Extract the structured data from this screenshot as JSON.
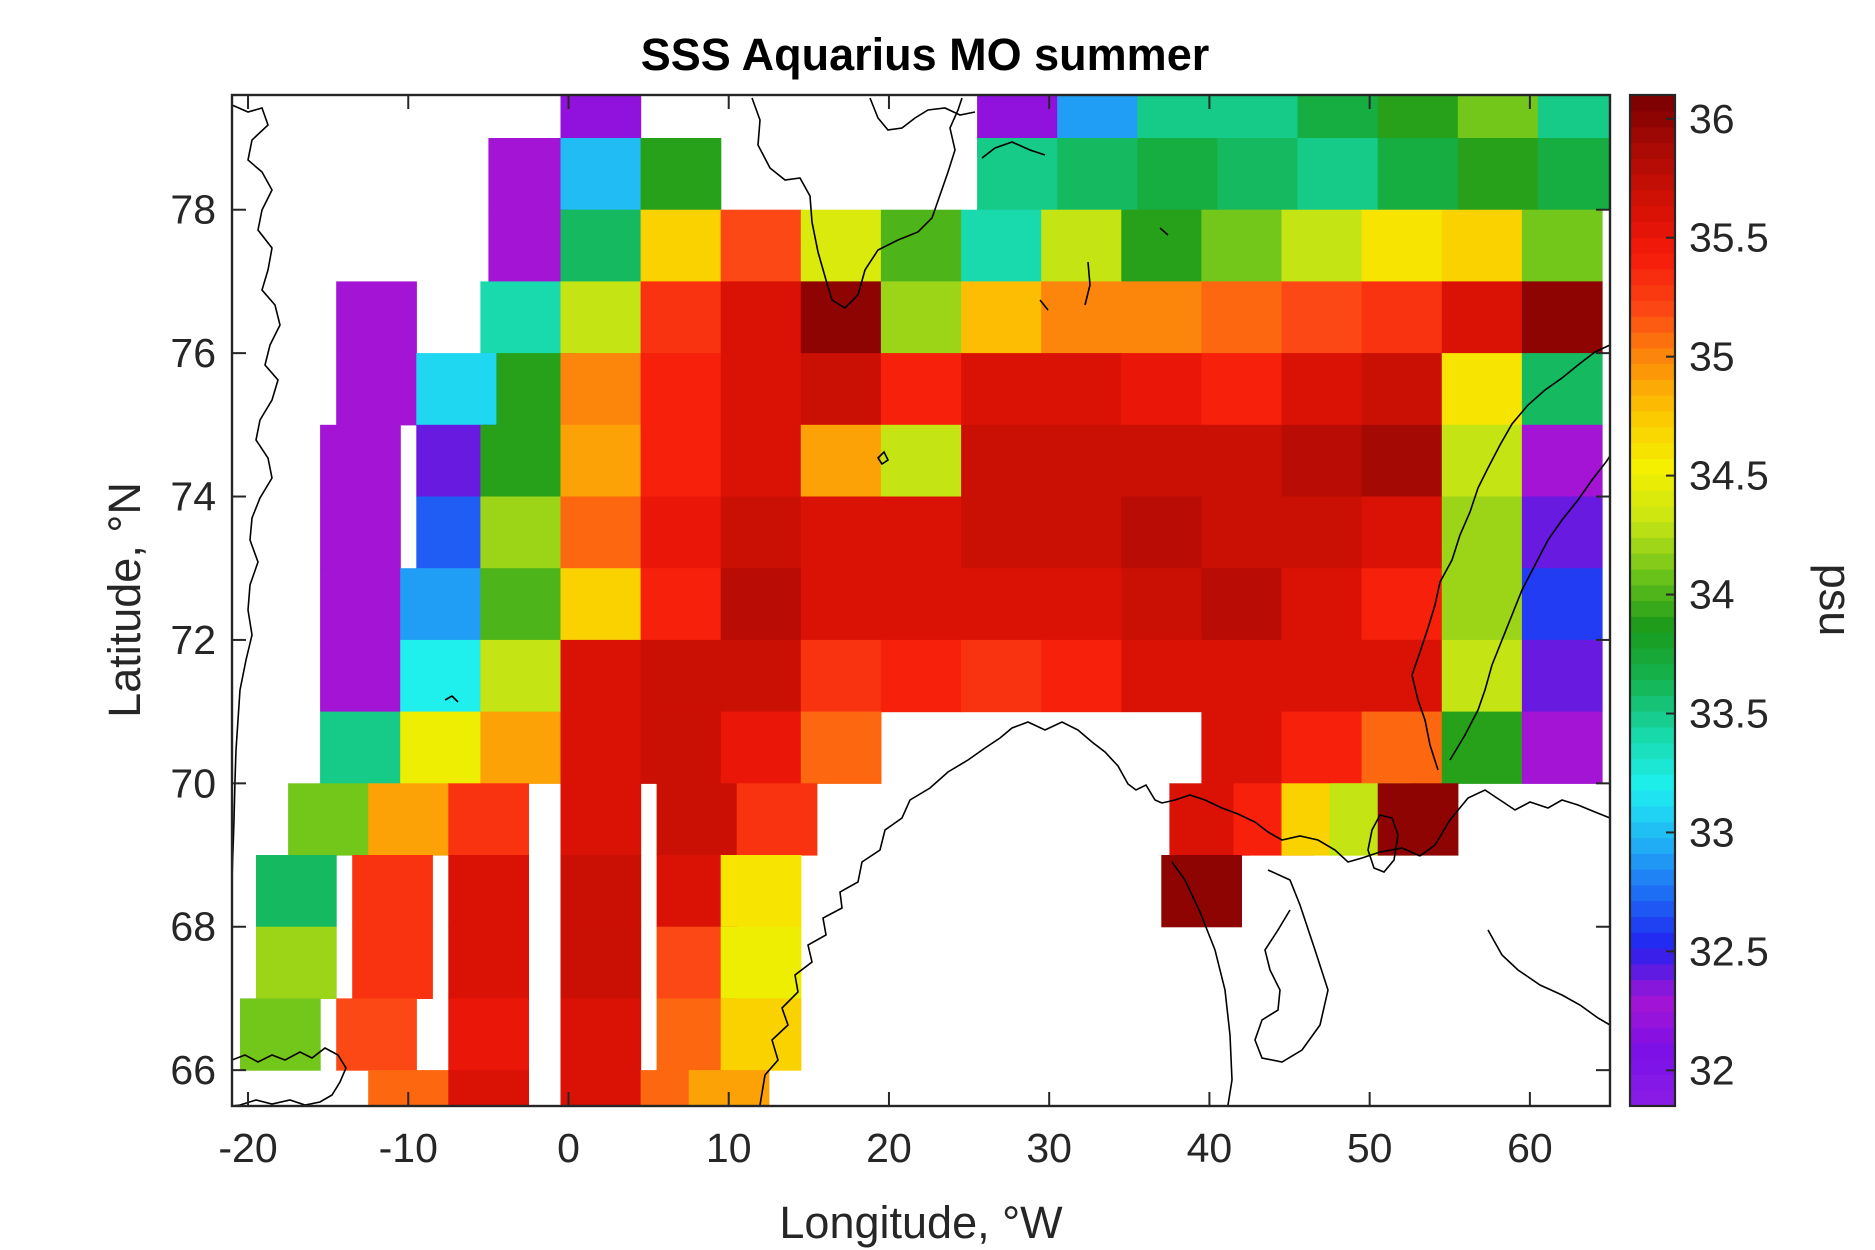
{
  "chart_data": {
    "type": "heatmap",
    "title": "SSS Aquarius MO summer",
    "xlabel": "Longitude, °W",
    "ylabel": "Latitude, °N",
    "colorbar_label": "psu",
    "xlim": [
      -21,
      65
    ],
    "ylim": [
      65.5,
      79.6
    ],
    "x_ticks": [
      "-20",
      "-10",
      "0",
      "10",
      "20",
      "30",
      "40",
      "50",
      "60"
    ],
    "x_tick_values": [
      -20,
      -10,
      0,
      10,
      20,
      30,
      40,
      50,
      60
    ],
    "y_ticks": [
      "66",
      "68",
      "70",
      "72",
      "74",
      "76",
      "78"
    ],
    "y_tick_values": [
      66,
      68,
      70,
      72,
      74,
      76,
      78
    ],
    "colorbar_ticks": [
      "32",
      "32.5",
      "33",
      "33.5",
      "34",
      "34.5",
      "35",
      "35.5",
      "36"
    ],
    "colorbar_tick_values": [
      32,
      32.5,
      33,
      33.5,
      34,
      34.5,
      35,
      35.5,
      36
    ],
    "clim": [
      31.85,
      36.1
    ],
    "grid": false,
    "colormap_colors": [
      "#8a1ee6",
      "#7a10e8",
      "#a514d4",
      "#2222f0",
      "#1e6cf5",
      "#21b4f5",
      "#1ff0f0",
      "#18d8a8",
      "#14b450",
      "#1a9a1a",
      "#6ec41a",
      "#c8e614",
      "#f5f000",
      "#fcc800",
      "#fc8c0a",
      "#fc4614",
      "#f51a0a",
      "#d21005",
      "#aa0a05",
      "#780000"
    ],
    "cells": [
      {
        "lon": 2,
        "lat": 79.25,
        "sss": 32.2
      },
      {
        "lon": 28,
        "lat": 79.25,
        "sss": 32.2
      },
      {
        "lon": 33,
        "lat": 79.25,
        "sss": 32.9
      },
      {
        "lon": 38,
        "lat": 79.25,
        "sss": 33.5
      },
      {
        "lon": 43,
        "lat": 79.25,
        "sss": 33.5
      },
      {
        "lon": 48,
        "lat": 79.25,
        "sss": 33.7
      },
      {
        "lon": 53,
        "lat": 79.25,
        "sss": 33.9
      },
      {
        "lon": 58,
        "lat": 79.25,
        "sss": 34.1
      },
      {
        "lon": 63,
        "lat": 79.25,
        "sss": 33.5
      },
      {
        "lon": -2.5,
        "lat": 78.5,
        "sss": 32.3
      },
      {
        "lon": 2,
        "lat": 78.5,
        "sss": 33.0
      },
      {
        "lon": 7,
        "lat": 78.5,
        "sss": 33.9
      },
      {
        "lon": 28,
        "lat": 78.5,
        "sss": 33.5
      },
      {
        "lon": 33,
        "lat": 78.5,
        "sss": 33.6
      },
      {
        "lon": 38,
        "lat": 78.5,
        "sss": 33.7
      },
      {
        "lon": 43,
        "lat": 78.5,
        "sss": 33.6
      },
      {
        "lon": 48,
        "lat": 78.5,
        "sss": 33.5
      },
      {
        "lon": 53,
        "lat": 78.5,
        "sss": 33.7
      },
      {
        "lon": 58,
        "lat": 78.5,
        "sss": 33.9
      },
      {
        "lon": 63,
        "lat": 78.5,
        "sss": 33.7
      },
      {
        "lon": -2.5,
        "lat": 77.5,
        "sss": 32.3
      },
      {
        "lon": 2,
        "lat": 77.5,
        "sss": 33.6
      },
      {
        "lon": 7,
        "lat": 77.5,
        "sss": 34.7
      },
      {
        "lon": 12,
        "lat": 77.5,
        "sss": 35.2
      },
      {
        "lon": 17,
        "lat": 77.5,
        "sss": 34.4
      },
      {
        "lon": 22,
        "lat": 77.5,
        "sss": 34.0
      },
      {
        "lon": 27,
        "lat": 77.5,
        "sss": 33.4
      },
      {
        "lon": 32,
        "lat": 77.5,
        "sss": 34.3
      },
      {
        "lon": 37,
        "lat": 77.5,
        "sss": 33.9
      },
      {
        "lon": 42,
        "lat": 77.5,
        "sss": 34.1
      },
      {
        "lon": 47,
        "lat": 77.5,
        "sss": 34.3
      },
      {
        "lon": 52,
        "lat": 77.5,
        "sss": 34.6
      },
      {
        "lon": 57,
        "lat": 77.5,
        "sss": 34.7
      },
      {
        "lon": 62,
        "lat": 77.5,
        "sss": 34.1
      },
      {
        "lon": -12,
        "lat": 76.5,
        "sss": 32.3
      },
      {
        "lon": -3,
        "lat": 76.5,
        "sss": 33.4
      },
      {
        "lon": 2,
        "lat": 76.5,
        "sss": 34.3
      },
      {
        "lon": 7,
        "lat": 76.5,
        "sss": 35.3
      },
      {
        "lon": 12,
        "lat": 76.5,
        "sss": 35.6
      },
      {
        "lon": 17,
        "lat": 76.5,
        "sss": 36.0
      },
      {
        "lon": 22,
        "lat": 76.5,
        "sss": 34.2
      },
      {
        "lon": 27,
        "lat": 76.5,
        "sss": 34.8
      },
      {
        "lon": 32,
        "lat": 76.5,
        "sss": 35.0
      },
      {
        "lon": 37,
        "lat": 76.5,
        "sss": 35.0
      },
      {
        "lon": 42,
        "lat": 76.5,
        "sss": 35.1
      },
      {
        "lon": 47,
        "lat": 76.5,
        "sss": 35.2
      },
      {
        "lon": 52,
        "lat": 76.5,
        "sss": 35.3
      },
      {
        "lon": 57,
        "lat": 76.5,
        "sss": 35.6
      },
      {
        "lon": 62,
        "lat": 76.5,
        "sss": 36.0
      },
      {
        "lon": -12,
        "lat": 75.5,
        "sss": 32.3
      },
      {
        "lon": -7,
        "lat": 75.5,
        "sss": 33.1
      },
      {
        "lon": -2,
        "lat": 75.5,
        "sss": 33.9
      },
      {
        "lon": 2,
        "lat": 75.5,
        "sss": 35.0
      },
      {
        "lon": 7,
        "lat": 75.5,
        "sss": 35.4
      },
      {
        "lon": 12,
        "lat": 75.5,
        "sss": 35.6
      },
      {
        "lon": 17,
        "lat": 75.5,
        "sss": 35.7
      },
      {
        "lon": 22,
        "lat": 75.5,
        "sss": 35.4
      },
      {
        "lon": 27,
        "lat": 75.5,
        "sss": 35.6
      },
      {
        "lon": 32,
        "lat": 75.5,
        "sss": 35.6
      },
      {
        "lon": 37,
        "lat": 75.5,
        "sss": 35.5
      },
      {
        "lon": 42,
        "lat": 75.5,
        "sss": 35.4
      },
      {
        "lon": 47,
        "lat": 75.5,
        "sss": 35.6
      },
      {
        "lon": 52,
        "lat": 75.5,
        "sss": 35.7
      },
      {
        "lon": 57,
        "lat": 75.5,
        "sss": 34.6
      },
      {
        "lon": 62,
        "lat": 75.5,
        "sss": 33.6
      },
      {
        "lon": -13,
        "lat": 74.5,
        "sss": 32.3
      },
      {
        "lon": -7,
        "lat": 74.5,
        "sss": 32.4
      },
      {
        "lon": -3,
        "lat": 74.5,
        "sss": 33.9
      },
      {
        "lon": 2,
        "lat": 74.5,
        "sss": 34.9
      },
      {
        "lon": 7,
        "lat": 74.5,
        "sss": 35.4
      },
      {
        "lon": 12,
        "lat": 74.5,
        "sss": 35.6
      },
      {
        "lon": 17,
        "lat": 74.5,
        "sss": 34.9
      },
      {
        "lon": 22,
        "lat": 74.5,
        "sss": 34.3
      },
      {
        "lon": 27,
        "lat": 74.5,
        "sss": 35.7
      },
      {
        "lon": 32,
        "lat": 74.5,
        "sss": 35.7
      },
      {
        "lon": 37,
        "lat": 74.5,
        "sss": 35.7
      },
      {
        "lon": 42,
        "lat": 74.5,
        "sss": 35.7
      },
      {
        "lon": 47,
        "lat": 74.5,
        "sss": 35.8
      },
      {
        "lon": 52,
        "lat": 74.5,
        "sss": 35.9
      },
      {
        "lon": 57,
        "lat": 74.5,
        "sss": 34.3
      },
      {
        "lon": 62,
        "lat": 74.5,
        "sss": 32.3
      },
      {
        "lon": -13,
        "lat": 73.5,
        "sss": 32.3
      },
      {
        "lon": -7,
        "lat": 73.5,
        "sss": 32.7
      },
      {
        "lon": -3,
        "lat": 73.5,
        "sss": 34.2
      },
      {
        "lon": 2,
        "lat": 73.5,
        "sss": 35.1
      },
      {
        "lon": 7,
        "lat": 73.5,
        "sss": 35.5
      },
      {
        "lon": 12,
        "lat": 73.5,
        "sss": 35.7
      },
      {
        "lon": 17,
        "lat": 73.5,
        "sss": 35.6
      },
      {
        "lon": 22,
        "lat": 73.5,
        "sss": 35.6
      },
      {
        "lon": 27,
        "lat": 73.5,
        "sss": 35.7
      },
      {
        "lon": 32,
        "lat": 73.5,
        "sss": 35.7
      },
      {
        "lon": 37,
        "lat": 73.5,
        "sss": 35.8
      },
      {
        "lon": 42,
        "lat": 73.5,
        "sss": 35.7
      },
      {
        "lon": 47,
        "lat": 73.5,
        "sss": 35.7
      },
      {
        "lon": 52,
        "lat": 73.5,
        "sss": 35.6
      },
      {
        "lon": 57,
        "lat": 73.5,
        "sss": 34.2
      },
      {
        "lon": 62,
        "lat": 73.5,
        "sss": 32.4
      },
      {
        "lon": -13,
        "lat": 72.5,
        "sss": 32.3
      },
      {
        "lon": -8,
        "lat": 72.5,
        "sss": 32.9
      },
      {
        "lon": -3,
        "lat": 72.5,
        "sss": 34.0
      },
      {
        "lon": 2,
        "lat": 72.5,
        "sss": 34.7
      },
      {
        "lon": 7,
        "lat": 72.5,
        "sss": 35.4
      },
      {
        "lon": 12,
        "lat": 72.5,
        "sss": 35.8
      },
      {
        "lon": 17,
        "lat": 72.5,
        "sss": 35.6
      },
      {
        "lon": 22,
        "lat": 72.5,
        "sss": 35.6
      },
      {
        "lon": 27,
        "lat": 72.5,
        "sss": 35.6
      },
      {
        "lon": 32,
        "lat": 72.5,
        "sss": 35.6
      },
      {
        "lon": 37,
        "lat": 72.5,
        "sss": 35.7
      },
      {
        "lon": 42,
        "lat": 72.5,
        "sss": 35.8
      },
      {
        "lon": 47,
        "lat": 72.5,
        "sss": 35.6
      },
      {
        "lon": 52,
        "lat": 72.5,
        "sss": 35.4
      },
      {
        "lon": 57,
        "lat": 72.5,
        "sss": 34.2
      },
      {
        "lon": 62,
        "lat": 72.5,
        "sss": 32.6
      },
      {
        "lon": -13,
        "lat": 71.5,
        "sss": 32.3
      },
      {
        "lon": -8,
        "lat": 71.5,
        "sss": 33.2
      },
      {
        "lon": -3,
        "lat": 71.5,
        "sss": 34.3
      },
      {
        "lon": 2,
        "lat": 71.5,
        "sss": 35.6
      },
      {
        "lon": 7,
        "lat": 71.5,
        "sss": 35.7
      },
      {
        "lon": 12,
        "lat": 71.5,
        "sss": 35.7
      },
      {
        "lon": 17,
        "lat": 71.5,
        "sss": 35.3
      },
      {
        "lon": 22,
        "lat": 71.5,
        "sss": 35.4
      },
      {
        "lon": 27,
        "lat": 71.5,
        "sss": 35.3
      },
      {
        "lon": 32,
        "lat": 71.5,
        "sss": 35.4
      },
      {
        "lon": 37,
        "lat": 71.5,
        "sss": 35.6
      },
      {
        "lon": 42,
        "lat": 71.5,
        "sss": 35.6
      },
      {
        "lon": 47,
        "lat": 71.5,
        "sss": 35.6
      },
      {
        "lon": 52,
        "lat": 71.5,
        "sss": 35.6
      },
      {
        "lon": 57,
        "lat": 71.5,
        "sss": 34.3
      },
      {
        "lon": 62,
        "lat": 71.5,
        "sss": 32.4
      },
      {
        "lon": -13,
        "lat": 70.5,
        "sss": 33.5
      },
      {
        "lon": -8,
        "lat": 70.5,
        "sss": 34.5
      },
      {
        "lon": -3,
        "lat": 70.5,
        "sss": 34.9
      },
      {
        "lon": 2,
        "lat": 70.5,
        "sss": 35.6
      },
      {
        "lon": 7,
        "lat": 70.5,
        "sss": 35.7
      },
      {
        "lon": 12,
        "lat": 70.5,
        "sss": 35.5
      },
      {
        "lon": 17,
        "lat": 70.5,
        "sss": 35.1
      },
      {
        "lon": 42,
        "lat": 70.5,
        "sss": 35.6
      },
      {
        "lon": 47,
        "lat": 70.5,
        "sss": 35.4
      },
      {
        "lon": 52,
        "lat": 70.5,
        "sss": 35.1
      },
      {
        "lon": 57,
        "lat": 70.5,
        "sss": 33.9
      },
      {
        "lon": 62,
        "lat": 70.5,
        "sss": 32.3
      },
      {
        "lon": -15,
        "lat": 69.5,
        "sss": 34.1
      },
      {
        "lon": -10,
        "lat": 69.5,
        "sss": 34.9
      },
      {
        "lon": -5,
        "lat": 69.5,
        "sss": 35.3
      },
      {
        "lon": 2,
        "lat": 69.5,
        "sss": 35.6
      },
      {
        "lon": 8,
        "lat": 69.5,
        "sss": 35.7
      },
      {
        "lon": 13,
        "lat": 69.5,
        "sss": 35.3
      },
      {
        "lon": 40,
        "lat": 69.5,
        "sss": 35.6
      },
      {
        "lon": 44,
        "lat": 69.5,
        "sss": 35.4
      },
      {
        "lon": 47,
        "lat": 69.5,
        "sss": 34.7
      },
      {
        "lon": 50,
        "lat": 69.5,
        "sss": 34.3
      },
      {
        "lon": 53,
        "lat": 69.5,
        "sss": 36.0
      },
      {
        "lon": -17,
        "lat": 68.5,
        "sss": 33.6
      },
      {
        "lon": -11,
        "lat": 68.5,
        "sss": 35.3
      },
      {
        "lon": -5,
        "lat": 68.5,
        "sss": 35.6
      },
      {
        "lon": 2,
        "lat": 68.5,
        "sss": 35.7
      },
      {
        "lon": 8,
        "lat": 68.5,
        "sss": 35.6
      },
      {
        "lon": 12,
        "lat": 68.5,
        "sss": 34.6
      },
      {
        "lon": 39.5,
        "lat": 68.5,
        "sss": 36.0
      },
      {
        "lon": -17,
        "lat": 67.5,
        "sss": 34.2
      },
      {
        "lon": -11,
        "lat": 67.5,
        "sss": 35.3
      },
      {
        "lon": -5,
        "lat": 67.5,
        "sss": 35.6
      },
      {
        "lon": 2,
        "lat": 67.5,
        "sss": 35.7
      },
      {
        "lon": 8,
        "lat": 67.5,
        "sss": 35.2
      },
      {
        "lon": 12,
        "lat": 67.5,
        "sss": 34.5
      },
      {
        "lon": -18,
        "lat": 66.5,
        "sss": 34.1
      },
      {
        "lon": -12,
        "lat": 66.5,
        "sss": 35.2
      },
      {
        "lon": -5,
        "lat": 66.5,
        "sss": 35.5
      },
      {
        "lon": 2,
        "lat": 66.5,
        "sss": 35.6
      },
      {
        "lon": 8,
        "lat": 66.5,
        "sss": 35.1
      },
      {
        "lon": 12,
        "lat": 66.5,
        "sss": 34.7
      },
      {
        "lon": -10,
        "lat": 65.75,
        "sss": 35.1
      },
      {
        "lon": -5,
        "lat": 65.75,
        "sss": 35.6
      },
      {
        "lon": 2,
        "lat": 65.75,
        "sss": 35.6
      },
      {
        "lon": 7,
        "lat": 65.75,
        "sss": 35.1
      },
      {
        "lon": 10,
        "lat": 65.75,
        "sss": 34.9
      }
    ]
  }
}
